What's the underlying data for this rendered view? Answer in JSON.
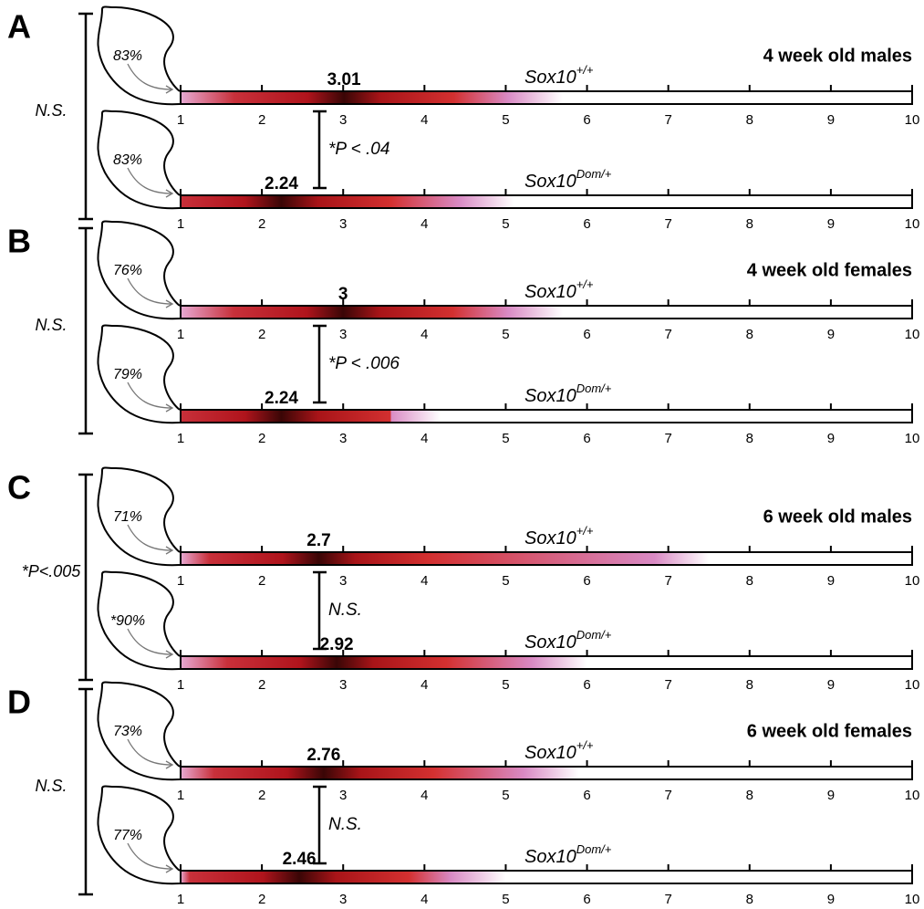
{
  "chart_data": [
    {
      "type": "gradient",
      "panel": "A",
      "title": "4 week old males",
      "left_stat": "N.S.",
      "between_stat": "*P < .04",
      "xlim": [
        1,
        10
      ],
      "xticks": [
        1,
        2,
        3,
        4,
        5,
        6,
        7,
        8,
        9,
        10
      ],
      "rows": [
        {
          "genotype": "Sox10",
          "genotype_sup": "+/+",
          "percent": "83%",
          "mean": 3.01,
          "range": [
            1,
            5.7
          ]
        },
        {
          "genotype": "Sox10",
          "genotype_sup": "Dom/+",
          "percent": "83%",
          "mean": 2.24,
          "range": [
            1,
            5.1
          ]
        }
      ]
    },
    {
      "type": "gradient",
      "panel": "B",
      "title": "4 week old females",
      "left_stat": "N.S.",
      "between_stat": "*P < .006",
      "xlim": [
        1,
        10
      ],
      "xticks": [
        1,
        2,
        3,
        4,
        5,
        6,
        7,
        8,
        9,
        10
      ],
      "rows": [
        {
          "genotype": "Sox10",
          "genotype_sup": "+/+",
          "percent": "76%",
          "mean": 3.0,
          "range": [
            1,
            5.7
          ]
        },
        {
          "genotype": "Sox10",
          "genotype_sup": "Dom/+",
          "percent": "79%",
          "mean": 2.24,
          "range": [
            1,
            4.2
          ]
        }
      ]
    },
    {
      "type": "gradient",
      "panel": "C",
      "title": "6 week old males",
      "left_stat": "*P<.005",
      "between_stat": "N.S.",
      "xlim": [
        1,
        10
      ],
      "xticks": [
        1,
        2,
        3,
        4,
        5,
        6,
        7,
        8,
        9,
        10
      ],
      "rows": [
        {
          "genotype": "Sox10",
          "genotype_sup": "+/+",
          "percent": "71%",
          "mean": 2.7,
          "range": [
            1,
            7.5
          ]
        },
        {
          "genotype": "Sox10",
          "genotype_sup": "Dom/+",
          "percent": "*90%",
          "mean": 2.92,
          "range": [
            1,
            6.0
          ]
        }
      ]
    },
    {
      "type": "gradient",
      "panel": "D",
      "title": "6 week old females",
      "left_stat": "N.S.",
      "between_stat": "N.S.",
      "xlim": [
        1,
        10
      ],
      "xticks": [
        1,
        2,
        3,
        4,
        5,
        6,
        7,
        8,
        9,
        10
      ],
      "rows": [
        {
          "genotype": "Sox10",
          "genotype_sup": "+/+",
          "percent": "73%",
          "mean": 2.76,
          "range": [
            1,
            5.9
          ]
        },
        {
          "genotype": "Sox10",
          "genotype_sup": "Dom/+",
          "percent": "77%",
          "mean": 2.46,
          "range": [
            1,
            5.0
          ]
        }
      ]
    }
  ]
}
